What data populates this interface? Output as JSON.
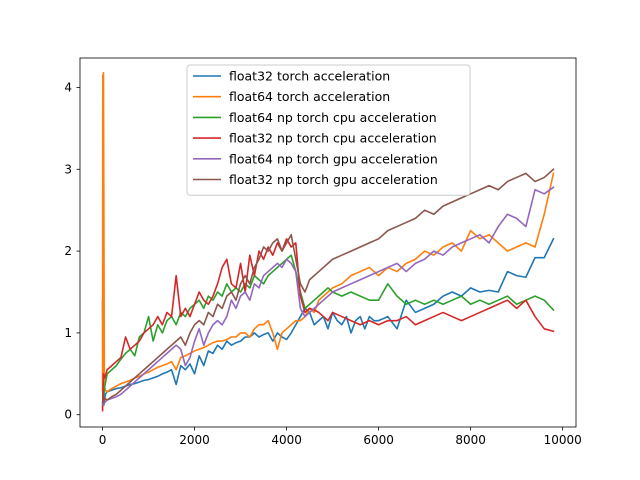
{
  "chart_data": {
    "type": "line",
    "title": "",
    "xlabel": "",
    "ylabel": "",
    "xlim": [
      -490,
      10290
    ],
    "ylim": [
      -0.15,
      4.36
    ],
    "xticks": [
      0,
      2000,
      4000,
      6000,
      8000,
      10000
    ],
    "yticks": [
      0,
      1,
      2,
      3,
      4
    ],
    "legend_position": "top-center",
    "grid": false,
    "series": [
      {
        "name": "float32 torch acceleration",
        "color": "#1f77b4",
        "x": [
          0,
          10,
          30,
          60,
          100,
          200,
          300,
          400,
          500,
          600,
          700,
          800,
          900,
          1000,
          1100,
          1200,
          1300,
          1400,
          1500,
          1600,
          1700,
          1800,
          1900,
          2000,
          2100,
          2200,
          2300,
          2400,
          2500,
          2600,
          2700,
          2800,
          2900,
          3000,
          3100,
          3200,
          3300,
          3400,
          3500,
          3600,
          3700,
          3800,
          3900,
          4000,
          4100,
          4200,
          4300,
          4400,
          4500,
          4600,
          4700,
          4800,
          4900,
          5000,
          5100,
          5200,
          5300,
          5400,
          5500,
          5600,
          5700,
          5800,
          5900,
          6000,
          6200,
          6400,
          6600,
          6800,
          7000,
          7200,
          7400,
          7600,
          7800,
          8000,
          8200,
          8400,
          8600,
          8800,
          9000,
          9200,
          9400,
          9600,
          9800
        ],
        "y": [
          1.4,
          0.2,
          0.12,
          0.25,
          0.28,
          0.3,
          0.32,
          0.33,
          0.35,
          0.37,
          0.38,
          0.4,
          0.42,
          0.43,
          0.45,
          0.47,
          0.5,
          0.52,
          0.55,
          0.37,
          0.6,
          0.55,
          0.62,
          0.5,
          0.72,
          0.6,
          0.78,
          0.75,
          0.85,
          0.8,
          0.9,
          0.85,
          0.88,
          0.9,
          0.95,
          0.95,
          1.0,
          0.95,
          0.98,
          1.0,
          0.9,
          1.0,
          0.95,
          0.92,
          1.0,
          1.1,
          1.2,
          1.3,
          1.25,
          1.1,
          1.15,
          1.2,
          1.05,
          1.25,
          1.15,
          1.1,
          1.2,
          1.0,
          1.15,
          1.2,
          1.05,
          1.2,
          1.15,
          1.15,
          1.2,
          1.05,
          1.4,
          1.25,
          1.3,
          1.35,
          1.45,
          1.5,
          1.45,
          1.55,
          1.5,
          1.52,
          1.5,
          1.75,
          1.7,
          1.68,
          1.92,
          1.92,
          2.15
        ]
      },
      {
        "name": "float64 torch acceleration",
        "color": "#ff7f0e",
        "x": [
          0,
          5,
          10,
          20,
          40,
          60,
          100,
          200,
          300,
          400,
          500,
          600,
          700,
          800,
          900,
          1000,
          1100,
          1200,
          1300,
          1400,
          1500,
          1600,
          1700,
          1800,
          1900,
          2000,
          2100,
          2200,
          2300,
          2400,
          2500,
          2600,
          2700,
          2800,
          2900,
          3000,
          3100,
          3200,
          3300,
          3400,
          3500,
          3600,
          3700,
          3800,
          3900,
          4000,
          4100,
          4200,
          4300,
          4400,
          4500,
          4600,
          4700,
          4800,
          4900,
          5000,
          5200,
          5400,
          5600,
          5800,
          6000,
          6200,
          6400,
          6600,
          6800,
          7000,
          7200,
          7400,
          7600,
          7800,
          8000,
          8200,
          8400,
          8600,
          8800,
          9000,
          9200,
          9400,
          9600,
          9800
        ],
        "y": [
          0.3,
          4.15,
          0.5,
          4.18,
          0.35,
          0.3,
          0.28,
          0.32,
          0.35,
          0.38,
          0.4,
          0.42,
          0.45,
          0.47,
          0.5,
          0.52,
          0.55,
          0.58,
          0.6,
          0.62,
          0.65,
          0.55,
          0.7,
          0.72,
          0.75,
          0.78,
          0.8,
          0.82,
          0.85,
          0.88,
          0.9,
          0.9,
          0.92,
          0.95,
          0.95,
          1.0,
          1.0,
          0.95,
          1.05,
          1.1,
          1.1,
          1.15,
          1.0,
          0.8,
          1.0,
          1.05,
          1.1,
          1.15,
          1.15,
          1.2,
          1.3,
          1.25,
          1.4,
          1.45,
          1.5,
          1.55,
          1.6,
          1.7,
          1.75,
          1.8,
          1.7,
          1.8,
          1.75,
          1.85,
          1.9,
          2.0,
          1.95,
          2.05,
          2.1,
          2.0,
          2.25,
          2.15,
          2.2,
          2.1,
          2.0,
          2.05,
          2.1,
          2.05,
          2.45,
          2.95
        ]
      },
      {
        "name": "float64 np torch cpu acceleration",
        "color": "#2ca02c",
        "x": [
          0,
          50,
          100,
          200,
          300,
          400,
          500,
          600,
          700,
          800,
          900,
          1000,
          1100,
          1200,
          1300,
          1400,
          1500,
          1600,
          1700,
          1800,
          1900,
          2000,
          2100,
          2200,
          2300,
          2400,
          2500,
          2600,
          2700,
          2800,
          2900,
          3000,
          3100,
          3200,
          3300,
          3400,
          3500,
          3600,
          3700,
          3800,
          3900,
          4000,
          4100,
          4200,
          4300,
          4400,
          4500,
          4600,
          4700,
          4800,
          4900,
          5000,
          5200,
          5400,
          5600,
          5800,
          6000,
          6200,
          6400,
          6600,
          6800,
          7000,
          7200,
          7400,
          7600,
          7800,
          8000,
          8200,
          8400,
          8600,
          8800,
          9000,
          9200,
          9400,
          9600,
          9800
        ],
        "y": [
          0.1,
          0.35,
          0.5,
          0.55,
          0.6,
          0.68,
          0.75,
          0.8,
          0.72,
          0.95,
          1.0,
          1.2,
          0.9,
          1.1,
          1.0,
          1.15,
          1.2,
          1.1,
          1.25,
          1.2,
          1.3,
          1.35,
          1.4,
          1.3,
          1.45,
          1.4,
          1.5,
          1.45,
          1.6,
          1.5,
          1.55,
          1.5,
          1.6,
          1.55,
          1.7,
          1.65,
          1.6,
          1.7,
          1.75,
          1.8,
          1.85,
          1.9,
          1.95,
          1.75,
          1.5,
          1.3,
          1.35,
          1.4,
          1.45,
          1.5,
          1.55,
          1.5,
          1.45,
          1.5,
          1.45,
          1.4,
          1.4,
          1.6,
          1.45,
          1.35,
          1.4,
          1.35,
          1.4,
          1.35,
          1.4,
          1.45,
          1.35,
          1.4,
          1.35,
          1.4,
          1.45,
          1.35,
          1.4,
          1.45,
          1.4,
          1.28
        ]
      },
      {
        "name": "float32 np torch cpu acceleration",
        "color": "#d62728",
        "x": [
          0,
          20,
          50,
          100,
          200,
          300,
          400,
          500,
          600,
          700,
          800,
          900,
          1000,
          1100,
          1200,
          1300,
          1400,
          1500,
          1600,
          1700,
          1800,
          1900,
          2000,
          2100,
          2200,
          2300,
          2400,
          2500,
          2600,
          2700,
          2800,
          2900,
          3000,
          3100,
          3200,
          3300,
          3400,
          3500,
          3600,
          3700,
          3800,
          3900,
          4000,
          4100,
          4200,
          4300,
          4400,
          4500,
          4600,
          4700,
          4800,
          4900,
          5000,
          5200,
          5400,
          5600,
          5800,
          6000,
          6200,
          6400,
          6600,
          6800,
          7000,
          7200,
          7400,
          7600,
          7800,
          8000,
          8200,
          8400,
          8600,
          8800,
          9000,
          9200,
          9400,
          9600,
          9800
        ],
        "y": [
          0.05,
          0.5,
          0.45,
          0.55,
          0.6,
          0.65,
          0.7,
          0.95,
          0.8,
          0.85,
          0.9,
          1.0,
          1.05,
          1.1,
          1.2,
          1.1,
          1.25,
          1.2,
          1.7,
          1.2,
          1.3,
          1.2,
          1.35,
          1.5,
          1.4,
          1.35,
          1.45,
          1.6,
          1.8,
          1.9,
          1.6,
          1.55,
          1.85,
          1.5,
          1.95,
          1.7,
          2.0,
          1.9,
          2.05,
          1.95,
          2.1,
          2.0,
          2.15,
          2.05,
          2.1,
          1.45,
          1.25,
          1.3,
          1.28,
          1.25,
          1.2,
          1.15,
          1.25,
          1.2,
          1.15,
          1.1,
          1.15,
          1.1,
          1.15,
          1.15,
          1.2,
          1.1,
          1.15,
          1.2,
          1.25,
          1.2,
          1.15,
          1.2,
          1.25,
          1.3,
          1.35,
          1.4,
          1.3,
          1.4,
          1.2,
          1.05,
          1.02
        ]
      },
      {
        "name": "float64 np torch gpu acceleration",
        "color": "#9467bd",
        "x": [
          0,
          50,
          100,
          200,
          300,
          400,
          500,
          600,
          700,
          800,
          900,
          1000,
          1100,
          1200,
          1300,
          1400,
          1500,
          1600,
          1700,
          1800,
          1900,
          2000,
          2100,
          2200,
          2300,
          2400,
          2500,
          2600,
          2700,
          2800,
          2900,
          3000,
          3100,
          3200,
          3300,
          3400,
          3500,
          3600,
          3700,
          3800,
          3900,
          4000,
          4100,
          4200,
          4300,
          4400,
          4500,
          4600,
          4700,
          4800,
          4900,
          5000,
          5200,
          5400,
          5600,
          5800,
          6000,
          6200,
          6400,
          6600,
          6800,
          7000,
          7200,
          7400,
          7600,
          7800,
          8000,
          8200,
          8400,
          8600,
          8800,
          9000,
          9200,
          9400,
          9600,
          9800
        ],
        "y": [
          0.12,
          0.15,
          0.18,
          0.2,
          0.22,
          0.25,
          0.3,
          0.35,
          0.4,
          0.45,
          0.5,
          0.55,
          0.6,
          0.65,
          0.7,
          0.75,
          0.8,
          0.85,
          0.8,
          0.6,
          0.7,
          0.9,
          1.05,
          0.85,
          1.0,
          1.1,
          1.15,
          1.1,
          1.2,
          1.4,
          1.3,
          1.45,
          1.5,
          1.4,
          1.6,
          1.55,
          1.7,
          1.75,
          1.8,
          1.85,
          1.8,
          1.9,
          1.85,
          1.75,
          1.3,
          1.2,
          1.25,
          1.3,
          1.35,
          1.4,
          1.45,
          1.5,
          1.55,
          1.6,
          1.65,
          1.7,
          1.75,
          1.8,
          1.85,
          1.75,
          1.85,
          1.9,
          2.0,
          1.95,
          2.05,
          2.1,
          2.15,
          2.2,
          2.1,
          2.3,
          2.45,
          2.4,
          2.3,
          2.75,
          2.7,
          2.78
        ]
      },
      {
        "name": "float32 np torch gpu acceleration",
        "color": "#8c564b",
        "x": [
          0,
          50,
          100,
          200,
          300,
          400,
          500,
          600,
          700,
          800,
          900,
          1000,
          1100,
          1200,
          1300,
          1400,
          1500,
          1600,
          1700,
          1800,
          1900,
          2000,
          2100,
          2200,
          2300,
          2400,
          2500,
          2600,
          2700,
          2800,
          2900,
          3000,
          3100,
          3200,
          3300,
          3400,
          3500,
          3600,
          3700,
          3800,
          3900,
          4000,
          4100,
          4200,
          4300,
          4400,
          4500,
          4600,
          4700,
          4800,
          4900,
          5000,
          5200,
          5400,
          5600,
          5800,
          6000,
          6200,
          6400,
          6600,
          6800,
          7000,
          7200,
          7400,
          7600,
          7800,
          8000,
          8200,
          8400,
          8600,
          8800,
          9000,
          9200,
          9400,
          9600,
          9800
        ],
        "y": [
          0.15,
          0.2,
          0.18,
          0.22,
          0.25,
          0.3,
          0.35,
          0.4,
          0.45,
          0.5,
          0.55,
          0.6,
          0.65,
          0.7,
          0.75,
          0.8,
          0.85,
          0.9,
          0.95,
          0.85,
          1.0,
          1.1,
          1.15,
          1.1,
          1.25,
          1.2,
          1.35,
          1.3,
          1.45,
          1.5,
          1.4,
          1.6,
          1.7,
          1.6,
          1.8,
          1.9,
          2.05,
          2.0,
          2.1,
          2.15,
          2.0,
          2.1,
          2.2,
          1.9,
          1.6,
          1.5,
          1.65,
          1.7,
          1.75,
          1.8,
          1.85,
          1.9,
          1.95,
          2.0,
          2.05,
          2.1,
          2.15,
          2.25,
          2.3,
          2.35,
          2.4,
          2.5,
          2.45,
          2.55,
          2.6,
          2.65,
          2.7,
          2.75,
          2.8,
          2.75,
          2.85,
          2.9,
          2.95,
          2.85,
          2.9,
          3.0
        ]
      }
    ]
  }
}
